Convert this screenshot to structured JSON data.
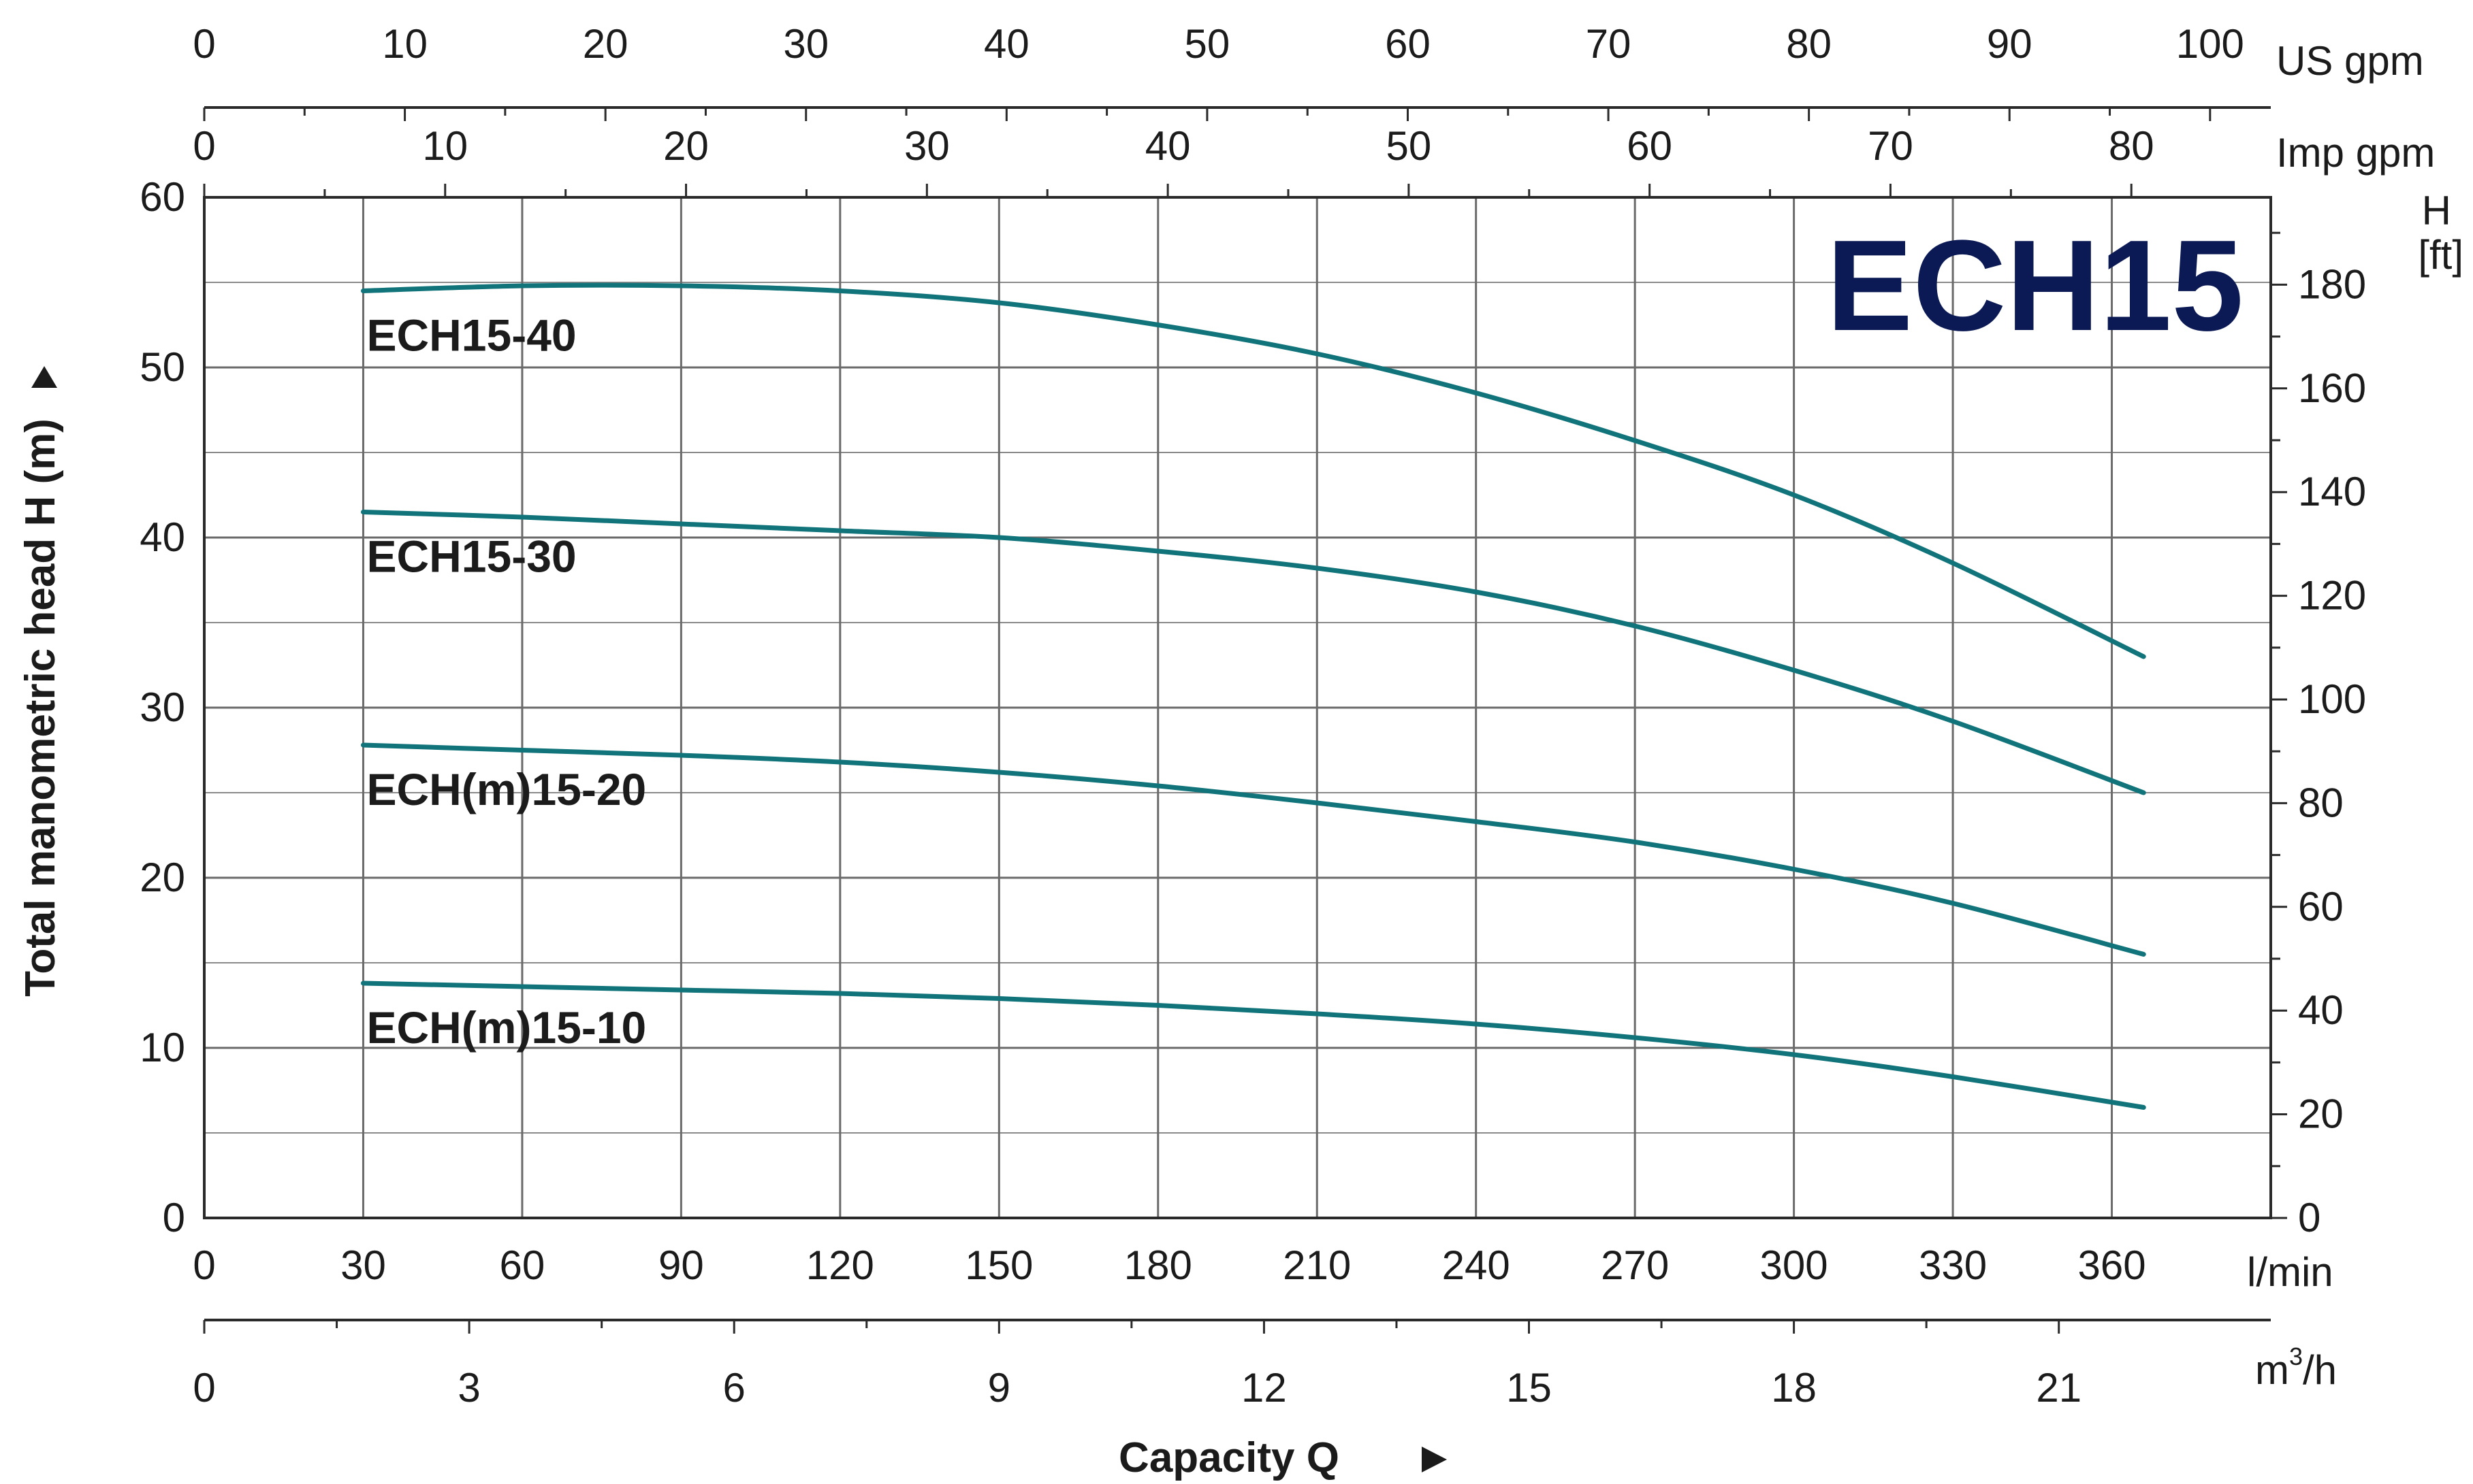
{
  "chart_data": {
    "type": "line",
    "title": "ECH15",
    "xlabel": "Capacity Q",
    "ylabel": "Total manometric head H (m)",
    "x_unit": "l/min",
    "y_unit": "m",
    "xlim": [
      0,
      390
    ],
    "ylim": [
      0,
      60
    ],
    "grid": true,
    "x_ticks": [
      0,
      30,
      60,
      90,
      120,
      150,
      180,
      210,
      240,
      270,
      300,
      330,
      360
    ],
    "y_ticks": [
      0,
      10,
      20,
      30,
      40,
      50,
      60
    ],
    "secondary_axes": {
      "us_gpm": {
        "label": "US gpm",
        "ticks": [
          0,
          10,
          20,
          30,
          40,
          50,
          60,
          70,
          80,
          90,
          100
        ]
      },
      "imp_gpm": {
        "label": "Imp gpm",
        "ticks": [
          0,
          10,
          20,
          30,
          40,
          50,
          60,
          70,
          80
        ]
      },
      "m3h": {
        "label_main": "m",
        "label_sup": "3",
        "label_tail": "/h",
        "ticks": [
          0,
          3,
          6,
          9,
          12,
          15,
          18,
          21
        ]
      },
      "h_ft": {
        "label_line1": "H",
        "label_line2": "[ft]",
        "ticks": [
          0,
          20,
          40,
          60,
          80,
          100,
          120,
          140,
          160,
          180
        ]
      }
    },
    "x": [
      30,
      60,
      90,
      120,
      150,
      180,
      210,
      240,
      270,
      300,
      330,
      366
    ],
    "series": [
      {
        "name": "ECH15-40",
        "values": [
          54.5,
          54.8,
          54.8,
          54.5,
          53.8,
          52.5,
          50.8,
          48.5,
          45.7,
          42.5,
          38.5,
          33.0
        ]
      },
      {
        "name": "ECH15-30",
        "values": [
          41.5,
          41.2,
          40.8,
          40.4,
          40.0,
          39.2,
          38.2,
          36.8,
          34.8,
          32.2,
          29.2,
          25.0
        ]
      },
      {
        "name": "ECH(m)15-20",
        "values": [
          27.8,
          27.5,
          27.2,
          26.8,
          26.2,
          25.4,
          24.4,
          23.3,
          22.1,
          20.5,
          18.5,
          15.5
        ]
      },
      {
        "name": "ECH(m)15-10",
        "values": [
          13.8,
          13.6,
          13.4,
          13.2,
          12.9,
          12.5,
          12.0,
          11.4,
          10.6,
          9.6,
          8.3,
          6.5
        ]
      }
    ],
    "series_color": "#11747a",
    "brand_color": "#0b1a55",
    "label_anchor_x": 30
  }
}
